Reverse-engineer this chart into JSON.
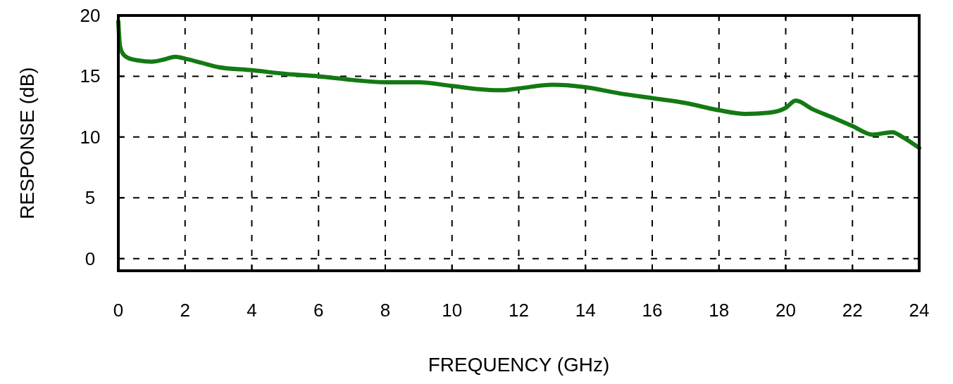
{
  "chart_data": {
    "type": "line",
    "xlabel": "FREQUENCY (GHz)",
    "ylabel": "RESPONSE (dB)",
    "xlim": [
      0,
      24
    ],
    "ylim": [
      -1,
      20
    ],
    "xticks": [
      0,
      2,
      4,
      6,
      8,
      10,
      12,
      14,
      16,
      18,
      20,
      22,
      24
    ],
    "yticks": [
      0,
      5,
      10,
      15,
      20
    ],
    "grid": true,
    "line_style": "solid",
    "marker": "none",
    "series": [
      {
        "color": "#137a13",
        "x": [
          0,
          0.05,
          0.15,
          0.3,
          0.6,
          1,
          1.4,
          1.7,
          2,
          2.5,
          3,
          4,
          5,
          6,
          7,
          8,
          9,
          10,
          11,
          11.5,
          12,
          13,
          14,
          15,
          16,
          17,
          18,
          18.8,
          19.5,
          20,
          20.3,
          20.8,
          21.5,
          22,
          22.6,
          23.2,
          23.5,
          24
        ],
        "values": [
          19.5,
          17.5,
          16.8,
          16.5,
          16.3,
          16.2,
          16.4,
          16.6,
          16.45,
          16.1,
          15.75,
          15.5,
          15.2,
          15.0,
          14.7,
          14.5,
          14.5,
          14.2,
          13.9,
          13.85,
          14.0,
          14.3,
          14.1,
          13.6,
          13.2,
          12.8,
          12.2,
          11.9,
          12.0,
          12.4,
          13.0,
          12.3,
          11.5,
          10.9,
          10.2,
          10.4,
          10.0,
          9.1
        ]
      }
    ]
  }
}
